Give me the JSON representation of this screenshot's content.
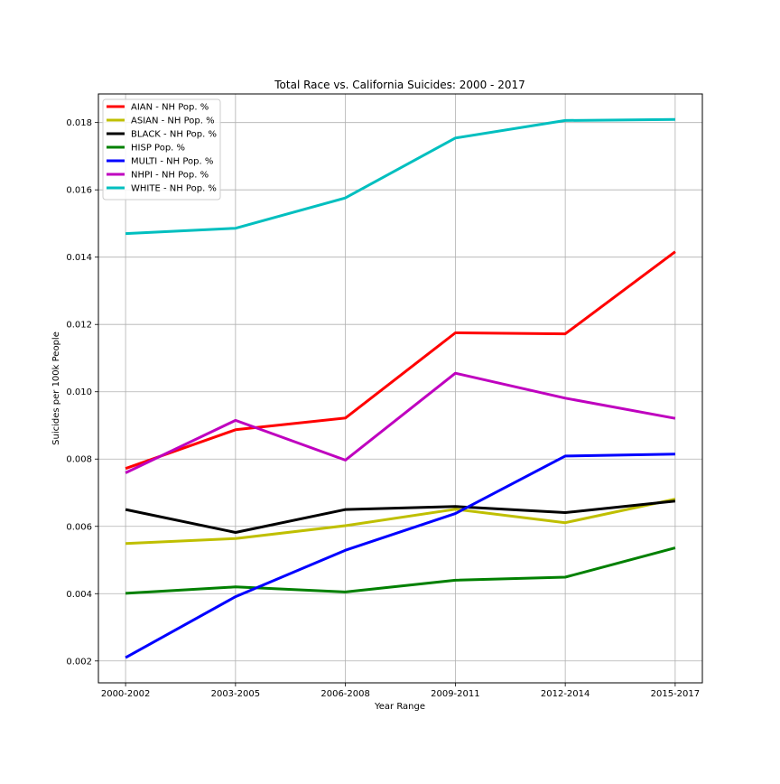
{
  "chart_data": {
    "type": "line",
    "title": "Total Race vs. California Suicides: 2000 - 2017",
    "xlabel": "Year Range",
    "ylabel": "Suicides per 100k People",
    "categories": [
      "2000-2002",
      "2003-2005",
      "2006-2008",
      "2009-2011",
      "2012-2014",
      "2015-2017"
    ],
    "ylim": [
      0.00135,
      0.01885
    ],
    "yticks": [
      0.002,
      0.004,
      0.006,
      0.008,
      0.01,
      0.012,
      0.014,
      0.016,
      0.018
    ],
    "ytick_labels": [
      "0.002",
      "0.004",
      "0.006",
      "0.008",
      "0.010",
      "0.012",
      "0.014",
      "0.016",
      "0.018"
    ],
    "grid": true,
    "legend_position": "top-left",
    "series": [
      {
        "name": "AIAN - NH Pop. %",
        "color": "#ff0000",
        "values": [
          0.00772,
          0.00887,
          0.00922,
          0.01175,
          0.01172,
          0.01416
        ]
      },
      {
        "name": "ASIAN - NH Pop. %",
        "color": "#bfbf00",
        "values": [
          0.00549,
          0.00564,
          0.00602,
          0.00651,
          0.00611,
          0.00681
        ]
      },
      {
        "name": "BLACK - NH Pop. %",
        "color": "#000000",
        "values": [
          0.0065,
          0.00582,
          0.0065,
          0.00659,
          0.00641,
          0.00675
        ]
      },
      {
        "name": "HISP Pop. %",
        "color": "#008000",
        "values": [
          0.00401,
          0.0042,
          0.00405,
          0.0044,
          0.00449,
          0.00536
        ]
      },
      {
        "name": "MULTI - NH Pop. %",
        "color": "#0000ff",
        "values": [
          0.0021,
          0.00391,
          0.00529,
          0.00638,
          0.00809,
          0.00815
        ]
      },
      {
        "name": "NHPI - NH Pop. %",
        "color": "#bf00bf",
        "values": [
          0.00759,
          0.00915,
          0.00797,
          0.01055,
          0.00981,
          0.00921
        ]
      },
      {
        "name": "WHITE - NH Pop. %",
        "color": "#00bfbf",
        "values": [
          0.0147,
          0.01486,
          0.01576,
          0.01754,
          0.01806,
          0.01809
        ]
      }
    ]
  }
}
